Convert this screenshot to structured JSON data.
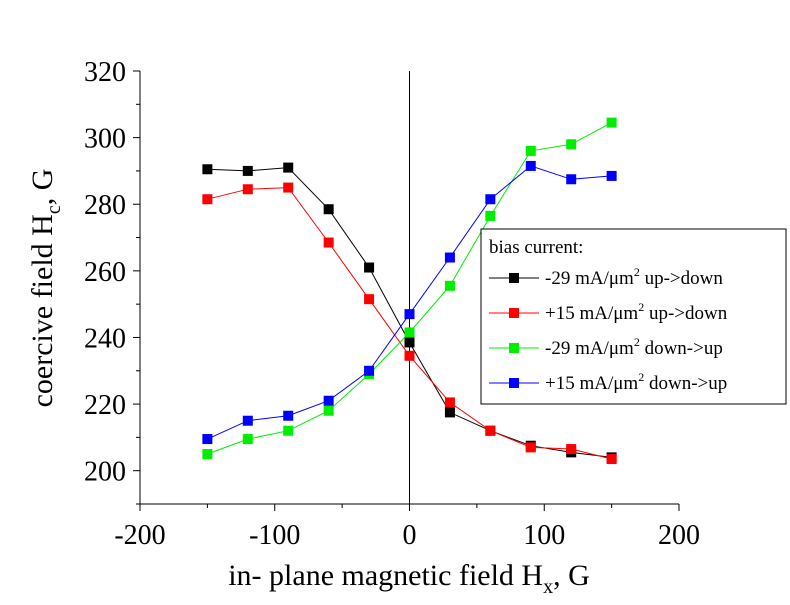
{
  "chart_data": {
    "type": "line",
    "title": "",
    "xlabel_main": "in- plane magnetic field H",
    "xlabel_sub": "x",
    "xlabel_tail": ", G",
    "ylabel_main": "coercive field H",
    "ylabel_sub": "c",
    "ylabel_tail": ", G",
    "xlim": [
      -200,
      200
    ],
    "ylim": [
      190,
      320
    ],
    "xticks": [
      -200,
      -100,
      0,
      100,
      200
    ],
    "yticks": [
      200,
      220,
      240,
      260,
      280,
      300,
      320
    ],
    "xtick_labels": [
      "-200",
      "-100",
      "0",
      "100",
      "200"
    ],
    "ytick_labels": [
      "200",
      "220",
      "240",
      "260",
      "280",
      "300",
      "320"
    ],
    "zero_line": true,
    "grid": false,
    "legend_placement": "right",
    "legend_title": "bias current:",
    "series": [
      {
        "label_prefix": "-29 mA/",
        "label_unit": "μm",
        "label_sup": "2",
        "label_suffix": " up->down",
        "color": "#000000",
        "x": [
          -150,
          -120,
          -90,
          -60,
          -30,
          0,
          30,
          60,
          90,
          120,
          150
        ],
        "y": [
          290.5,
          290.0,
          291.0,
          278.5,
          261.0,
          238.5,
          217.5,
          212.0,
          207.5,
          205.5,
          204.0
        ]
      },
      {
        "label_prefix": "+15 mA/",
        "label_unit": "μm",
        "label_sup": "2",
        "label_suffix": " up->down",
        "color": "#ff0000",
        "x": [
          -150,
          -120,
          -90,
          -60,
          -30,
          0,
          30,
          60,
          90,
          120,
          150
        ],
        "y": [
          281.5,
          284.5,
          285.0,
          268.5,
          251.5,
          234.5,
          220.5,
          212.0,
          207.0,
          206.5,
          203.5
        ]
      },
      {
        "label_prefix": "-29 mA/",
        "label_unit": "μm",
        "label_sup": "2",
        "label_suffix": " down->up",
        "color": "#00ee00",
        "x": [
          -150,
          -120,
          -90,
          -60,
          -30,
          0,
          30,
          60,
          90,
          120,
          150
        ],
        "y": [
          205.0,
          209.5,
          212.0,
          218.0,
          229.0,
          241.5,
          255.5,
          276.5,
          296.0,
          298.0,
          304.5
        ]
      },
      {
        "label_prefix": "+15 mA/",
        "label_unit": "μm",
        "label_sup": "2",
        "label_suffix": " down->up",
        "color": "#0000ff",
        "x": [
          -150,
          -120,
          -90,
          -60,
          -30,
          0,
          30,
          60,
          90,
          120,
          150
        ],
        "y": [
          209.5,
          215.0,
          216.5,
          221.0,
          230.0,
          247.0,
          264.0,
          281.5,
          291.5,
          287.5,
          288.5
        ]
      }
    ]
  }
}
